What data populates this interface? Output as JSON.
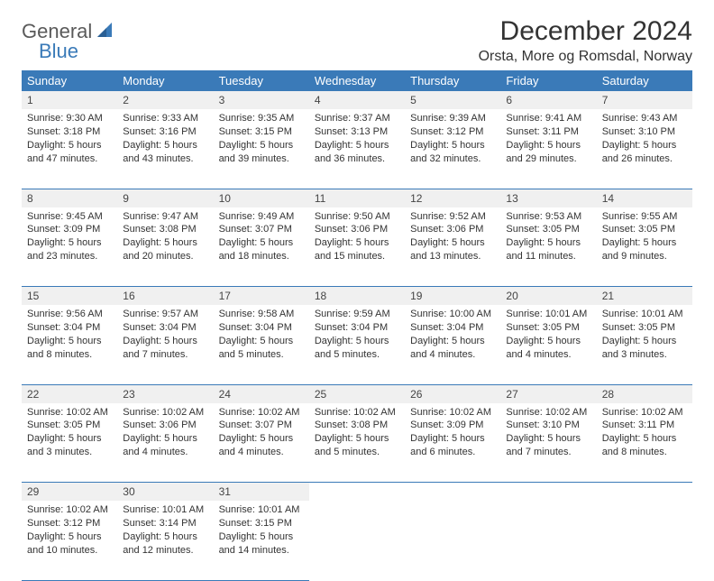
{
  "logo": {
    "part1": "General",
    "part2": "Blue"
  },
  "title": "December 2024",
  "location": "Orsta, More og Romsdal, Norway",
  "colors": {
    "header_bg": "#3a7ab8",
    "header_text": "#ffffff",
    "daynum_bg": "#f0f0f0",
    "border": "#3a7ab8",
    "logo_gray": "#5a5a5a",
    "logo_blue": "#3a7ab8"
  },
  "day_headers": [
    "Sunday",
    "Monday",
    "Tuesday",
    "Wednesday",
    "Thursday",
    "Friday",
    "Saturday"
  ],
  "weeks": [
    [
      {
        "n": "1",
        "sr": "9:30 AM",
        "ss": "3:18 PM",
        "dl": "5 hours and 47 minutes."
      },
      {
        "n": "2",
        "sr": "9:33 AM",
        "ss": "3:16 PM",
        "dl": "5 hours and 43 minutes."
      },
      {
        "n": "3",
        "sr": "9:35 AM",
        "ss": "3:15 PM",
        "dl": "5 hours and 39 minutes."
      },
      {
        "n": "4",
        "sr": "9:37 AM",
        "ss": "3:13 PM",
        "dl": "5 hours and 36 minutes."
      },
      {
        "n": "5",
        "sr": "9:39 AM",
        "ss": "3:12 PM",
        "dl": "5 hours and 32 minutes."
      },
      {
        "n": "6",
        "sr": "9:41 AM",
        "ss": "3:11 PM",
        "dl": "5 hours and 29 minutes."
      },
      {
        "n": "7",
        "sr": "9:43 AM",
        "ss": "3:10 PM",
        "dl": "5 hours and 26 minutes."
      }
    ],
    [
      {
        "n": "8",
        "sr": "9:45 AM",
        "ss": "3:09 PM",
        "dl": "5 hours and 23 minutes."
      },
      {
        "n": "9",
        "sr": "9:47 AM",
        "ss": "3:08 PM",
        "dl": "5 hours and 20 minutes."
      },
      {
        "n": "10",
        "sr": "9:49 AM",
        "ss": "3:07 PM",
        "dl": "5 hours and 18 minutes."
      },
      {
        "n": "11",
        "sr": "9:50 AM",
        "ss": "3:06 PM",
        "dl": "5 hours and 15 minutes."
      },
      {
        "n": "12",
        "sr": "9:52 AM",
        "ss": "3:06 PM",
        "dl": "5 hours and 13 minutes."
      },
      {
        "n": "13",
        "sr": "9:53 AM",
        "ss": "3:05 PM",
        "dl": "5 hours and 11 minutes."
      },
      {
        "n": "14",
        "sr": "9:55 AM",
        "ss": "3:05 PM",
        "dl": "5 hours and 9 minutes."
      }
    ],
    [
      {
        "n": "15",
        "sr": "9:56 AM",
        "ss": "3:04 PM",
        "dl": "5 hours and 8 minutes."
      },
      {
        "n": "16",
        "sr": "9:57 AM",
        "ss": "3:04 PM",
        "dl": "5 hours and 7 minutes."
      },
      {
        "n": "17",
        "sr": "9:58 AM",
        "ss": "3:04 PM",
        "dl": "5 hours and 5 minutes."
      },
      {
        "n": "18",
        "sr": "9:59 AM",
        "ss": "3:04 PM",
        "dl": "5 hours and 5 minutes."
      },
      {
        "n": "19",
        "sr": "10:00 AM",
        "ss": "3:04 PM",
        "dl": "5 hours and 4 minutes."
      },
      {
        "n": "20",
        "sr": "10:01 AM",
        "ss": "3:05 PM",
        "dl": "5 hours and 4 minutes."
      },
      {
        "n": "21",
        "sr": "10:01 AM",
        "ss": "3:05 PM",
        "dl": "5 hours and 3 minutes."
      }
    ],
    [
      {
        "n": "22",
        "sr": "10:02 AM",
        "ss": "3:05 PM",
        "dl": "5 hours and 3 minutes."
      },
      {
        "n": "23",
        "sr": "10:02 AM",
        "ss": "3:06 PM",
        "dl": "5 hours and 4 minutes."
      },
      {
        "n": "24",
        "sr": "10:02 AM",
        "ss": "3:07 PM",
        "dl": "5 hours and 4 minutes."
      },
      {
        "n": "25",
        "sr": "10:02 AM",
        "ss": "3:08 PM",
        "dl": "5 hours and 5 minutes."
      },
      {
        "n": "26",
        "sr": "10:02 AM",
        "ss": "3:09 PM",
        "dl": "5 hours and 6 minutes."
      },
      {
        "n": "27",
        "sr": "10:02 AM",
        "ss": "3:10 PM",
        "dl": "5 hours and 7 minutes."
      },
      {
        "n": "28",
        "sr": "10:02 AM",
        "ss": "3:11 PM",
        "dl": "5 hours and 8 minutes."
      }
    ],
    [
      {
        "n": "29",
        "sr": "10:02 AM",
        "ss": "3:12 PM",
        "dl": "5 hours and 10 minutes."
      },
      {
        "n": "30",
        "sr": "10:01 AM",
        "ss": "3:14 PM",
        "dl": "5 hours and 12 minutes."
      },
      {
        "n": "31",
        "sr": "10:01 AM",
        "ss": "3:15 PM",
        "dl": "5 hours and 14 minutes."
      },
      null,
      null,
      null,
      null
    ]
  ],
  "labels": {
    "sunrise": "Sunrise:",
    "sunset": "Sunset:",
    "daylight": "Daylight:"
  }
}
